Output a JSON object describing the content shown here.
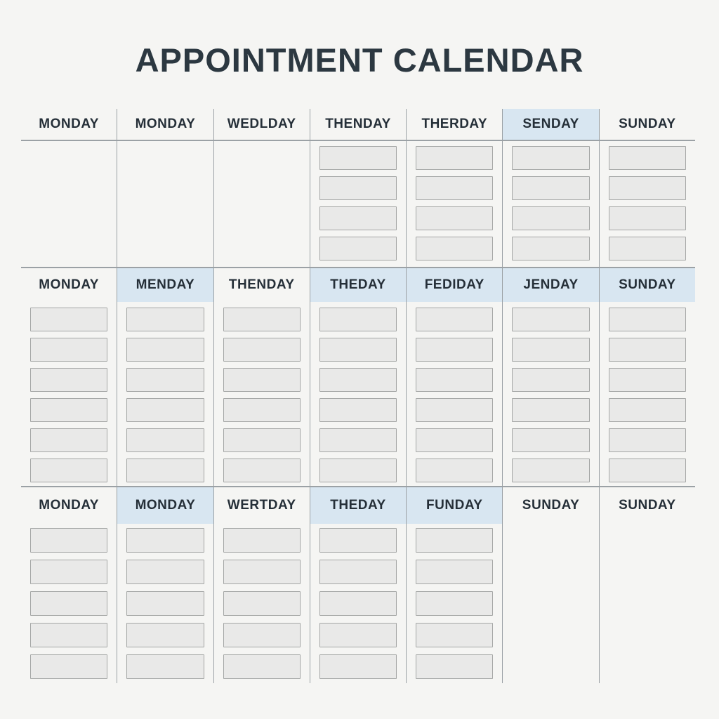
{
  "page": {
    "title": "APPOINTMENT CALENDAR"
  },
  "colors": {
    "background": "#f5f5f3",
    "title_text": "#2c3841",
    "header_text": "#252f38",
    "highlight": "#d8e6f1",
    "slot_fill": "#e9e9e8",
    "slot_border": "#a4a6a5",
    "grid_line": "#9ba1a5"
  },
  "weeks": [
    {
      "days": [
        {
          "label": "MONDAY",
          "highlighted": false,
          "slots": 0
        },
        {
          "label": "MONDAY",
          "highlighted": false,
          "slots": 0
        },
        {
          "label": "WEDLDAY",
          "highlighted": false,
          "slots": 0
        },
        {
          "label": "THENDAY",
          "highlighted": false,
          "slots": 4
        },
        {
          "label": "THERDAY",
          "highlighted": false,
          "slots": 4
        },
        {
          "label": "SENDAY",
          "highlighted": true,
          "slots": 4
        },
        {
          "label": "SUNDAY",
          "highlighted": false,
          "slots": 4
        }
      ]
    },
    {
      "days": [
        {
          "label": "MONDAY",
          "highlighted": false,
          "slots": 6
        },
        {
          "label": "MENDAY",
          "highlighted": true,
          "slots": 6
        },
        {
          "label": "THENDAY",
          "highlighted": false,
          "slots": 6
        },
        {
          "label": "THEDAY",
          "highlighted": true,
          "slots": 6
        },
        {
          "label": "FEDIDAY",
          "highlighted": true,
          "slots": 6
        },
        {
          "label": "JENDAY",
          "highlighted": true,
          "slots": 6
        },
        {
          "label": "SUNDAY",
          "highlighted": true,
          "slots": 6
        }
      ]
    },
    {
      "days": [
        {
          "label": "MONDAY",
          "highlighted": false,
          "slots": 5
        },
        {
          "label": "MONDAY",
          "highlighted": true,
          "slots": 5
        },
        {
          "label": "WERTDAY",
          "highlighted": false,
          "slots": 5
        },
        {
          "label": "THEDAY",
          "highlighted": true,
          "slots": 5
        },
        {
          "label": "FUNDAY",
          "highlighted": true,
          "slots": 5
        },
        {
          "label": "SUNDAY",
          "highlighted": false,
          "slots": 0
        },
        {
          "label": "SUNDAY",
          "highlighted": false,
          "slots": 0
        }
      ]
    }
  ]
}
